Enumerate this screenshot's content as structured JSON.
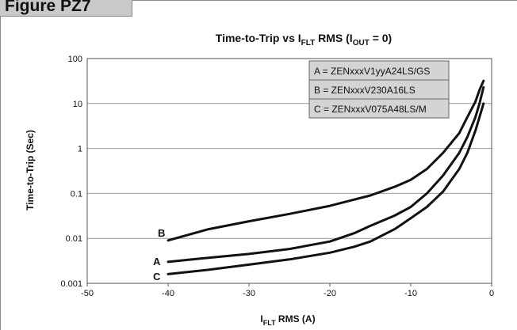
{
  "figure_label": "Figure PZ7",
  "chart_data": {
    "type": "line",
    "title": "Time-to-Trip vs I",
    "title_sub": "FLT",
    "title_mid": " RMS (I",
    "title_sub2": "OUT",
    "title_end": " = 0)",
    "xlabel_main": "I",
    "xlabel_sub": "FLT",
    "xlabel_end": " RMS (A)",
    "ylabel": "Time-to-Trip (Sec)",
    "x_scale": "linear",
    "y_scale": "log",
    "xlim": [
      -50,
      0
    ],
    "ylim": [
      0.001,
      100
    ],
    "x_ticks": [
      -50,
      -40,
      -30,
      -20,
      -10,
      0
    ],
    "x_tick_labels": [
      "-50",
      "-40",
      "-30",
      "-20",
      "-10",
      "0"
    ],
    "y_ticks": [
      0.001,
      0.01,
      0.1,
      1,
      10,
      100
    ],
    "y_tick_labels": [
      "0.001",
      "0.01",
      "0.1",
      "1",
      "10",
      "100"
    ],
    "grid": "horizontal",
    "legend_position": "top-right",
    "legend": [
      "A = ZENxxxV1yyA24LS/GS",
      "B = ZENxxxV230A16LS",
      "C = ZENxxxV075A48LS/M"
    ],
    "series": [
      {
        "name": "B",
        "x": [
          -40,
          -35,
          -30,
          -25,
          -20,
          -15,
          -12,
          -10,
          -8,
          -6,
          -4,
          -3,
          -2,
          -1.5,
          -1
        ],
        "y": [
          0.009,
          0.016,
          0.024,
          0.035,
          0.053,
          0.09,
          0.14,
          0.2,
          0.35,
          0.8,
          2.2,
          5,
          11,
          20,
          32
        ]
      },
      {
        "name": "A",
        "x": [
          -40,
          -35,
          -30,
          -25,
          -20,
          -17,
          -15,
          -12,
          -10,
          -8,
          -6,
          -4,
          -3,
          -2,
          -1.5,
          -1
        ],
        "y": [
          0.003,
          0.0037,
          0.0045,
          0.0058,
          0.0085,
          0.013,
          0.019,
          0.032,
          0.05,
          0.1,
          0.25,
          0.8,
          1.8,
          5,
          10,
          23
        ]
      },
      {
        "name": "C",
        "x": [
          -40,
          -35,
          -30,
          -25,
          -20,
          -17,
          -15,
          -12,
          -10,
          -8,
          -6,
          -4,
          -3,
          -2,
          -1.5,
          -1
        ],
        "y": [
          0.0016,
          0.002,
          0.0026,
          0.0034,
          0.0048,
          0.0065,
          0.0085,
          0.016,
          0.028,
          0.05,
          0.11,
          0.35,
          0.8,
          2.5,
          5,
          10
        ]
      }
    ],
    "curve_labels": [
      "B",
      "A",
      "C"
    ]
  }
}
